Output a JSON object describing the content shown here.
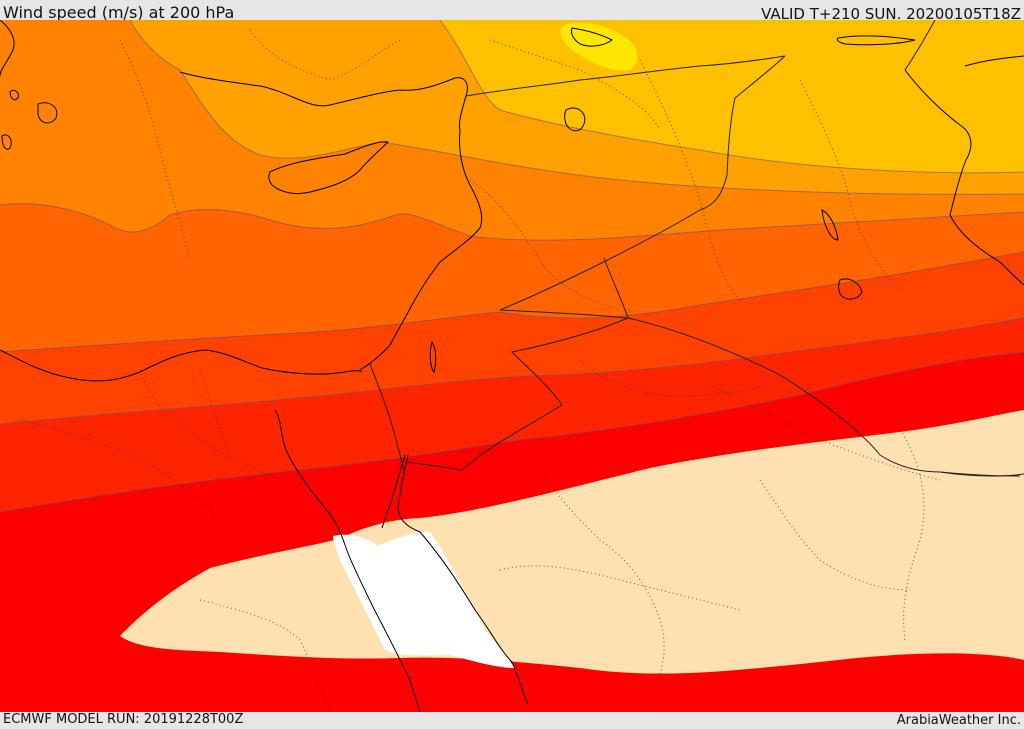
{
  "header": {
    "title": "Wind speed (m/s) at 200 hPa",
    "valid": "VALID T+210 SUN. 20200105T18Z"
  },
  "footer": {
    "model_run": "ECMWF MODEL RUN: 20191228T00Z",
    "credit": "ArabiaWeather Inc."
  },
  "map": {
    "field": "wind speed",
    "level": "200 hPa",
    "band_colors": [
      "#ffe600",
      "#ffc000",
      "#ffa100",
      "#ff8200",
      "#ff6400",
      "#ff4200",
      "#ff2400",
      "#ff0000",
      "#ffe0b0",
      "#ffffff"
    ]
  }
}
